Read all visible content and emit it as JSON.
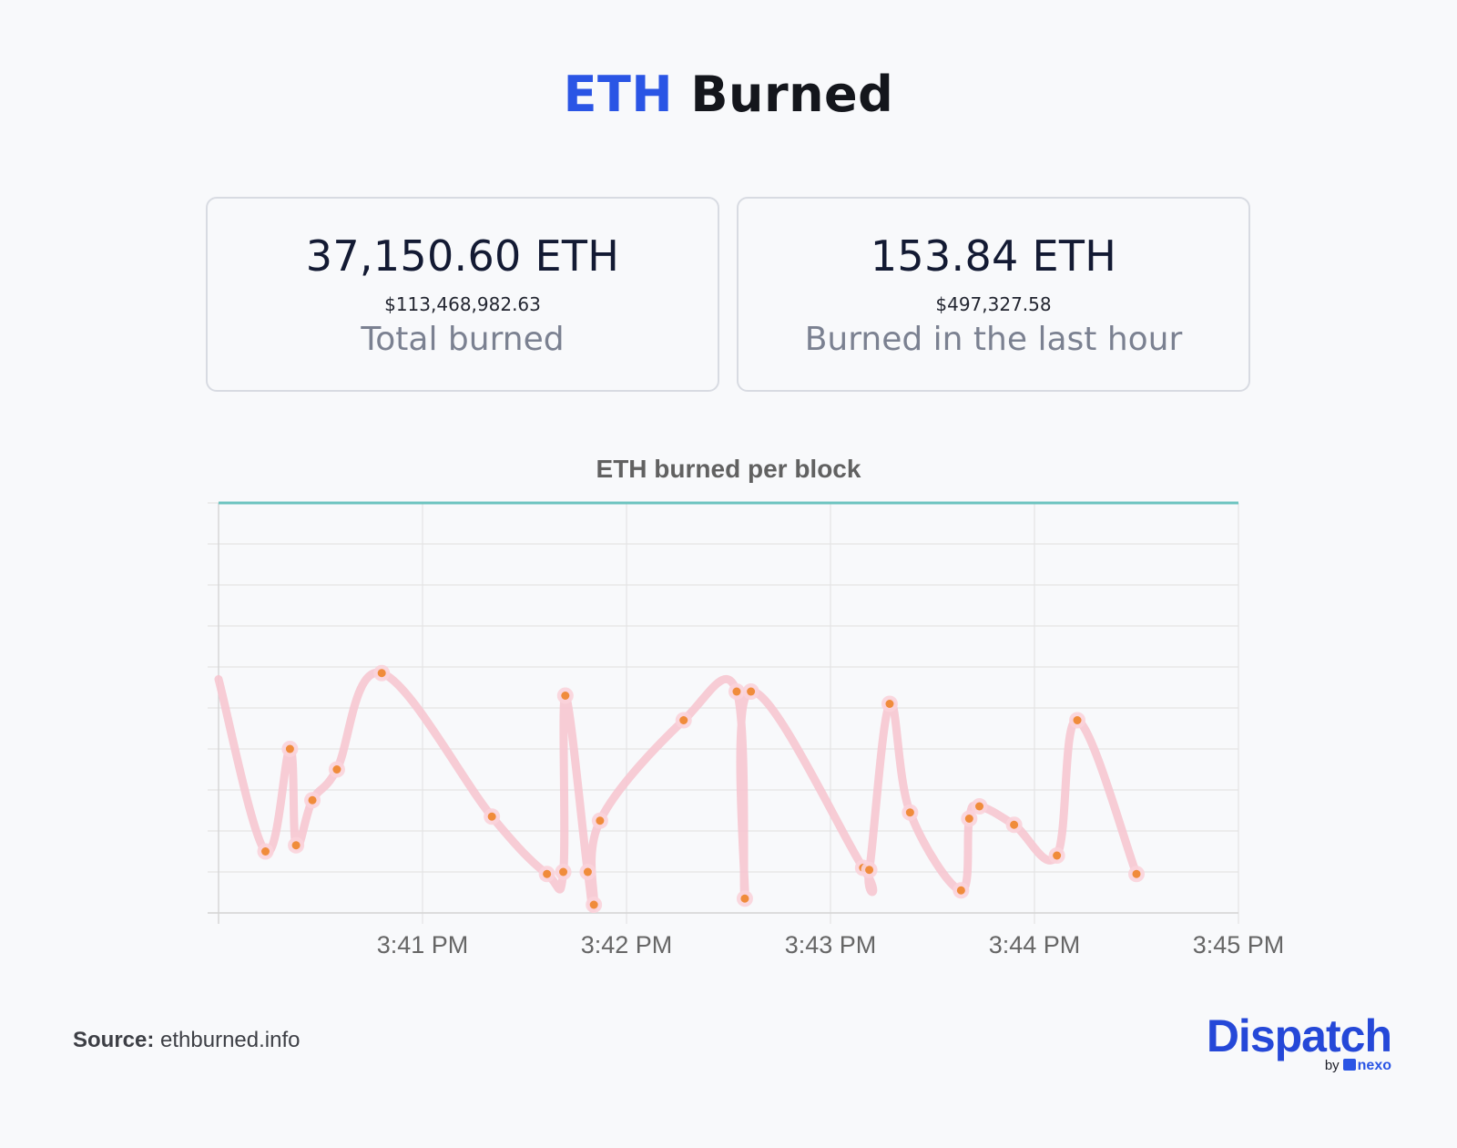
{
  "header": {
    "title_accent": "ETH",
    "title_rest": "Burned"
  },
  "stats": [
    {
      "amount": "37,150.60 ETH",
      "usd": "$113,468,982.63",
      "caption": "Total burned"
    },
    {
      "amount": "153.84 ETH",
      "usd": "$497,327.58",
      "caption": "Burned in the last hour"
    }
  ],
  "chart_data": {
    "type": "line",
    "title": "ETH burned per block",
    "xlabel": "",
    "ylabel": "",
    "x_ticks": [
      "3:41 PM",
      "3:42 PM",
      "3:43 PM",
      "3:44 PM",
      "3:45 PM"
    ],
    "xlim": [
      3.44,
      8.44
    ],
    "ylim": [
      0,
      10
    ],
    "y_tick_labels_shown": false,
    "grid": true,
    "series": [
      {
        "line_color": "#f6c7d0",
        "point_color": "#f08c3b",
        "points": [
          {
            "x": 3.44,
            "y": 5.7
          },
          {
            "x": 3.67,
            "y": 1.5
          },
          {
            "x": 3.79,
            "y": 4.0
          },
          {
            "x": 3.82,
            "y": 1.65
          },
          {
            "x": 3.9,
            "y": 2.75
          },
          {
            "x": 4.02,
            "y": 3.5
          },
          {
            "x": 4.24,
            "y": 5.85
          },
          {
            "x": 4.78,
            "y": 2.35
          },
          {
            "x": 5.05,
            "y": 0.95
          },
          {
            "x": 5.13,
            "y": 1.0
          },
          {
            "x": 5.14,
            "y": 5.3
          },
          {
            "x": 5.25,
            "y": 1.0
          },
          {
            "x": 5.28,
            "y": 0.2
          },
          {
            "x": 5.31,
            "y": 2.25
          },
          {
            "x": 5.72,
            "y": 4.7
          },
          {
            "x": 5.98,
            "y": 5.4
          },
          {
            "x": 6.02,
            "y": 0.35
          },
          {
            "x": 6.05,
            "y": 5.4
          },
          {
            "x": 6.6,
            "y": 1.1
          },
          {
            "x": 6.63,
            "y": 1.05
          },
          {
            "x": 6.73,
            "y": 5.1
          },
          {
            "x": 6.83,
            "y": 2.45
          },
          {
            "x": 7.08,
            "y": 0.55
          },
          {
            "x": 7.12,
            "y": 2.3
          },
          {
            "x": 7.17,
            "y": 2.6
          },
          {
            "x": 7.34,
            "y": 2.15
          },
          {
            "x": 7.55,
            "y": 1.4
          },
          {
            "x": 7.65,
            "y": 4.7
          },
          {
            "x": 7.94,
            "y": 0.95
          }
        ]
      }
    ],
    "top_reference_line": {
      "color": "#6cc3bf"
    }
  },
  "footer": {
    "source_label": "Source:",
    "source_value": "ethburned.info"
  },
  "logo": {
    "word": "Dispatch",
    "by": "by",
    "partner": "nexo"
  }
}
